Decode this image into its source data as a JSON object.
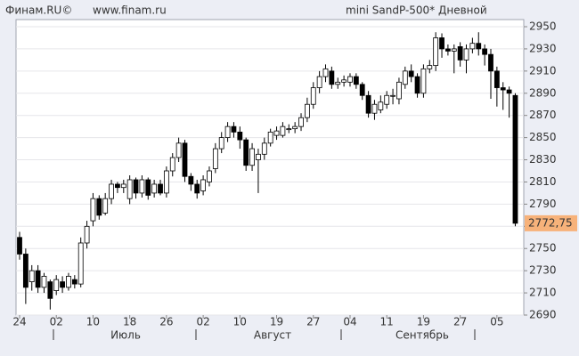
{
  "header": {
    "left": "Финам.RU©",
    "site": "www.finam.ru",
    "instrument": "mini SandP-500* Дневной"
  },
  "chart_data": {
    "type": "candlestick",
    "categories": [
      "24",
      null,
      null,
      null,
      null,
      null,
      "02",
      null,
      null,
      null,
      null,
      null,
      "10",
      null,
      null,
      null,
      null,
      null,
      "18",
      null,
      null,
      null,
      null,
      null,
      "26",
      null,
      null,
      null,
      null,
      null,
      "02",
      null,
      null,
      null,
      null,
      null,
      "10",
      null,
      null,
      null,
      null,
      null,
      "19",
      null,
      null,
      null,
      null,
      null,
      "27",
      null,
      null,
      null,
      null,
      null,
      "04",
      null,
      null,
      null,
      null,
      null,
      "11",
      null,
      null,
      null,
      null,
      null,
      "19",
      null,
      null,
      null,
      null,
      null,
      "27",
      null,
      null,
      null,
      null,
      null,
      "05",
      null,
      null,
      null
    ],
    "months": [
      "Июль",
      "Август",
      "Сентябрь"
    ],
    "open": [
      2760,
      2745,
      2720,
      2730,
      2715,
      2720,
      2712,
      2720,
      2715,
      2722,
      2718,
      2755,
      2775,
      2795,
      2782,
      2795,
      2808,
      2805,
      2795,
      2812,
      2800,
      2812,
      2800,
      2808,
      2800,
      2820,
      2832,
      2845,
      2815,
      2808,
      2802,
      2810,
      2822,
      2840,
      2850,
      2860,
      2855,
      2848,
      2825,
      2830,
      2835,
      2845,
      2852,
      2852,
      2858,
      2858,
      2860,
      2868,
      2880,
      2895,
      2905,
      2910,
      2898,
      2900,
      2900,
      2905,
      2898,
      2888,
      2872,
      2875,
      2880,
      2888,
      2885,
      2898,
      2910,
      2905,
      2890,
      2912,
      2915,
      2940,
      2930,
      2928,
      2932,
      2920,
      2930,
      2935,
      2930,
      2925,
      2910,
      2895,
      2893,
      2888
    ],
    "high": [
      2765,
      2750,
      2735,
      2735,
      2728,
      2722,
      2726,
      2725,
      2728,
      2726,
      2760,
      2775,
      2800,
      2798,
      2800,
      2812,
      2810,
      2812,
      2816,
      2814,
      2816,
      2814,
      2812,
      2812,
      2824,
      2836,
      2850,
      2848,
      2818,
      2812,
      2816,
      2824,
      2845,
      2855,
      2864,
      2864,
      2860,
      2850,
      2845,
      2840,
      2850,
      2858,
      2860,
      2864,
      2862,
      2864,
      2872,
      2886,
      2900,
      2910,
      2916,
      2914,
      2904,
      2906,
      2908,
      2908,
      2900,
      2892,
      2884,
      2888,
      2892,
      2894,
      2904,
      2914,
      2916,
      2908,
      2916,
      2920,
      2945,
      2944,
      2934,
      2934,
      2936,
      2934,
      2940,
      2945,
      2934,
      2930,
      2914,
      2900,
      2896,
      2890
    ],
    "low": [
      2740,
      2700,
      2712,
      2710,
      2710,
      2695,
      2708,
      2710,
      2712,
      2714,
      2715,
      2750,
      2770,
      2776,
      2780,
      2790,
      2800,
      2800,
      2790,
      2795,
      2796,
      2794,
      2796,
      2798,
      2796,
      2815,
      2828,
      2810,
      2802,
      2795,
      2798,
      2806,
      2818,
      2836,
      2846,
      2850,
      2840,
      2820,
      2820,
      2800,
      2830,
      2842,
      2848,
      2850,
      2854,
      2854,
      2856,
      2864,
      2876,
      2890,
      2900,
      2894,
      2894,
      2896,
      2896,
      2894,
      2884,
      2868,
      2866,
      2872,
      2876,
      2880,
      2880,
      2894,
      2900,
      2886,
      2886,
      2908,
      2910,
      2922,
      2924,
      2908,
      2914,
      2908,
      2926,
      2924,
      2915,
      2885,
      2878,
      2875,
      2868,
      2770
    ],
    "close": [
      2745,
      2715,
      2730,
      2715,
      2725,
      2705,
      2722,
      2715,
      2725,
      2718,
      2755,
      2770,
      2795,
      2780,
      2795,
      2808,
      2805,
      2808,
      2812,
      2800,
      2812,
      2798,
      2808,
      2800,
      2820,
      2832,
      2845,
      2815,
      2808,
      2800,
      2812,
      2820,
      2840,
      2850,
      2860,
      2855,
      2848,
      2825,
      2840,
      2835,
      2845,
      2855,
      2856,
      2860,
      2858,
      2860,
      2868,
      2880,
      2895,
      2905,
      2912,
      2898,
      2900,
      2902,
      2905,
      2898,
      2888,
      2872,
      2880,
      2882,
      2888,
      2888,
      2900,
      2910,
      2905,
      2890,
      2912,
      2915,
      2940,
      2930,
      2928,
      2930,
      2920,
      2930,
      2935,
      2930,
      2925,
      2910,
      2895,
      2893,
      2890,
      2772.75
    ],
    "last_price": {
      "value": 2772.75,
      "label": "2772,75"
    },
    "up_color": "#ffffff",
    "down_color": "#000000",
    "last_color": "#f7b27a",
    "ylim": [
      2690,
      2950
    ],
    "yticks": [
      2690,
      2710,
      2730,
      2750,
      2770,
      2790,
      2810,
      2830,
      2850,
      2870,
      2890,
      2910,
      2930,
      2950
    ],
    "grid": true
  }
}
